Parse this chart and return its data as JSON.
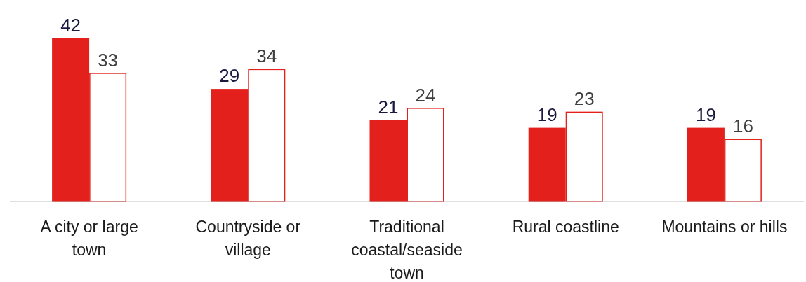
{
  "chart_data": {
    "type": "bar",
    "categories": [
      "A city or large town",
      "Countryside or village",
      "Traditional coastal/seaside town",
      "Rural coastline",
      "Mountains or hills"
    ],
    "series": [
      {
        "color": "#e3201b",
        "values": [
          42,
          29,
          21,
          19,
          19
        ]
      },
      {
        "color": "#ffffff",
        "values": [
          33,
          34,
          24,
          23,
          16
        ]
      }
    ],
    "data_labels": true
  }
}
